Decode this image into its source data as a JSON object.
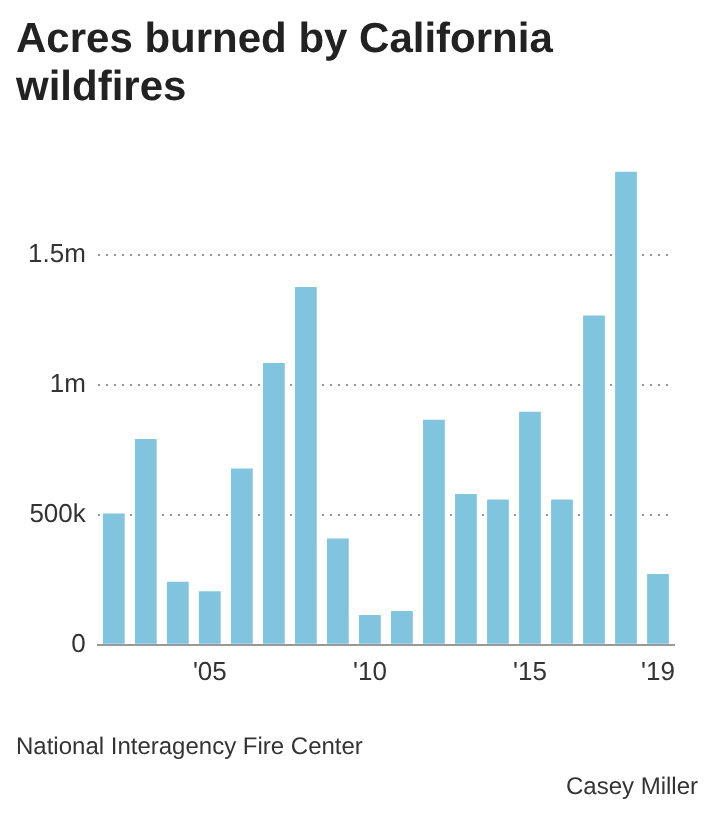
{
  "chart_data": {
    "type": "bar",
    "title": "Acres burned by California wildfires",
    "categories": [
      null,
      null,
      null,
      "'05",
      null,
      null,
      null,
      null,
      "'10",
      null,
      null,
      null,
      null,
      "'15",
      null,
      null,
      null,
      "'19"
    ],
    "values": [
      506000,
      792000,
      243000,
      206000,
      679000,
      1085000,
      1378000,
      409000,
      115000,
      130000,
      867000,
      581000,
      559000,
      897000,
      559000,
      1268000,
      1822000,
      273000
    ],
    "color": "#80c4de",
    "ylim": [
      0,
      1822000
    ],
    "yticks": [
      {
        "value": 0,
        "label": "0"
      },
      {
        "value": 500000,
        "label": "500k"
      },
      {
        "value": 1000000,
        "label": "1m"
      },
      {
        "value": 1500000,
        "label": "1.5m"
      }
    ],
    "grid": "y",
    "annotations": [
      "National Interagency Fire Center",
      "Casey Miller"
    ]
  }
}
